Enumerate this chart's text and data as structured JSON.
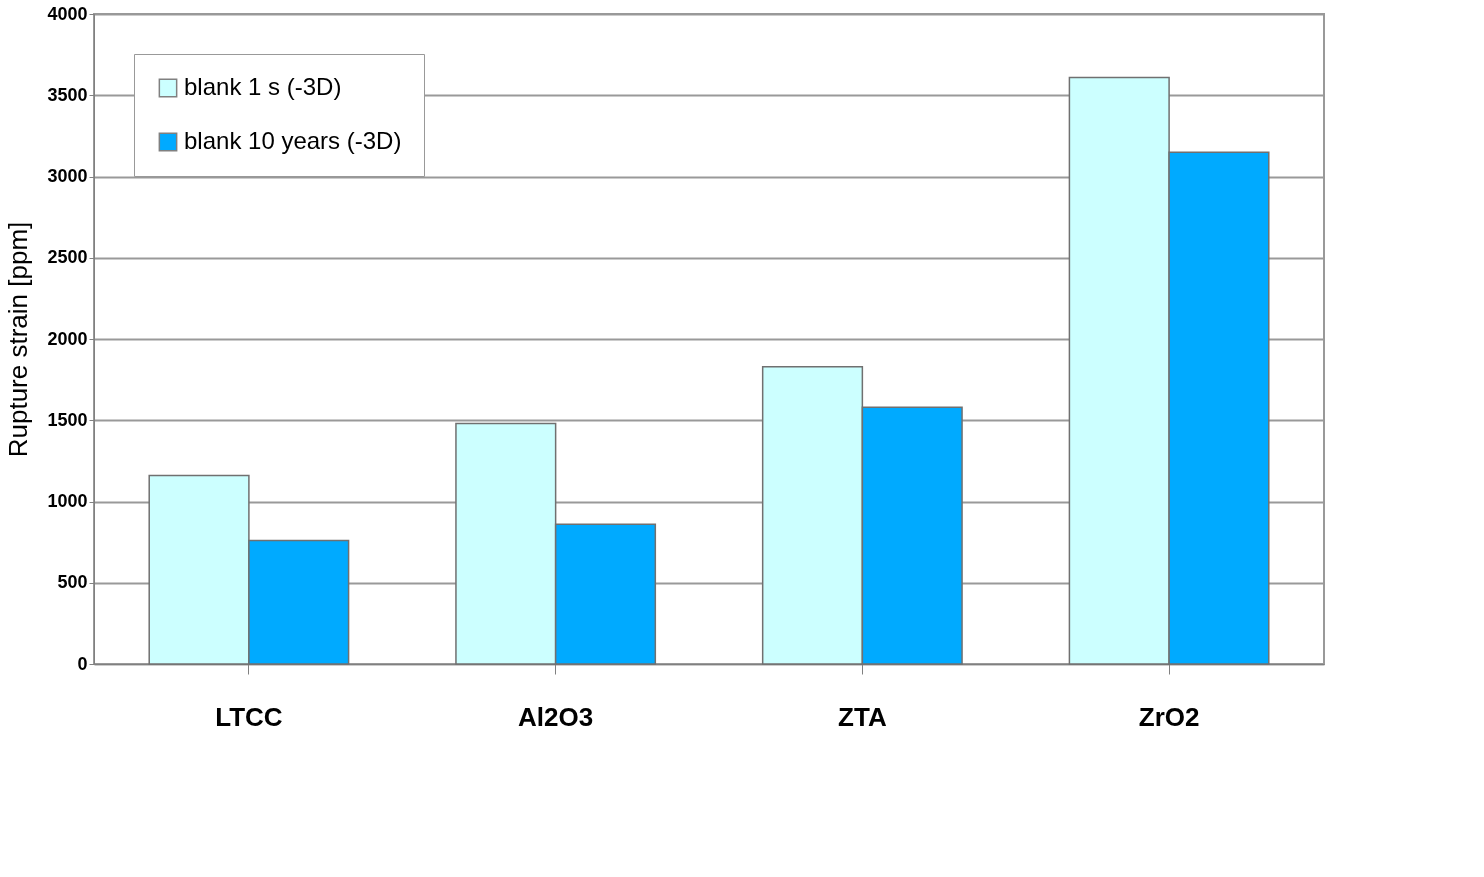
{
  "chart_data": {
    "type": "bar",
    "ylabel": "Rupture strain [ppm]",
    "categories": [
      "LTCC",
      "Al2O3",
      "ZTA",
      "ZrO2"
    ],
    "series": [
      {
        "name": "blank 1 s (-3D)",
        "color": "#ccffff",
        "values": [
          1160,
          1480,
          1830,
          3610
        ]
      },
      {
        "name": "blank 10 years (-3D)",
        "color": "#00aaff",
        "values": [
          760,
          860,
          1580,
          3150
        ]
      }
    ],
    "ylim": [
      0,
      4000
    ],
    "yticks": [
      0,
      500,
      1000,
      1500,
      2000,
      2500,
      3000,
      3500,
      4000
    ],
    "grid": "y",
    "legend": "top left"
  }
}
